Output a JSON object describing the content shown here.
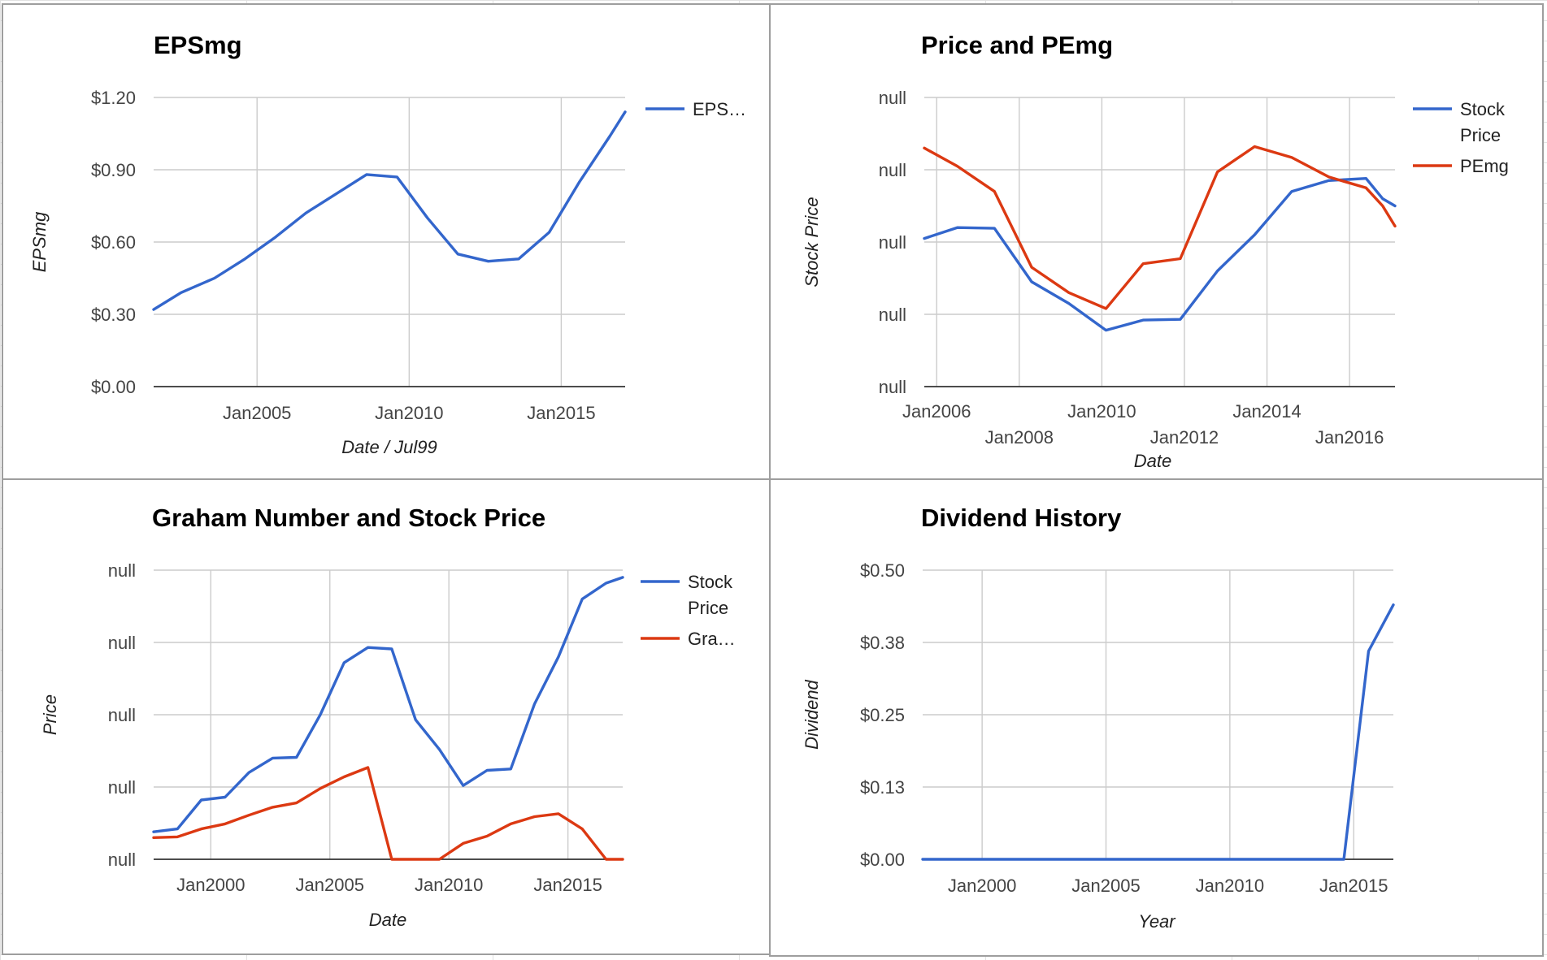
{
  "colors": {
    "blue": "#3366cc",
    "red": "#dc3912",
    "grid": "#cccccc"
  },
  "chart_data": [
    {
      "type": "line",
      "title": "EPSmg",
      "xlabel": "Date / Jul99",
      "ylabel": "EPSmg",
      "x_tick_labels": [
        "Jan2005",
        "Jan2010",
        "Jan2015"
      ],
      "y_tick_labels": [
        "$0.00",
        "$0.30",
        "$0.60",
        "$0.90",
        "$1.20"
      ],
      "xlim": [
        2001.6,
        2017.1
      ],
      "ylim": [
        0,
        1.2
      ],
      "legend_position": "right",
      "x": [
        2001.6,
        2002.5,
        2003.6,
        2004.6,
        2005.6,
        2006.6,
        2007.6,
        2008.6,
        2009.6,
        2010.6,
        2011.6,
        2012.6,
        2013.6,
        2014.6,
        2015.6,
        2016.6,
        2017.1
      ],
      "series": [
        {
          "name": "EPS…",
          "color": "#3366cc",
          "values": [
            0.32,
            0.39,
            0.45,
            0.53,
            0.62,
            0.72,
            0.8,
            0.88,
            0.87,
            0.7,
            0.55,
            0.52,
            0.53,
            0.64,
            0.85,
            1.04,
            1.14
          ]
        }
      ]
    },
    {
      "type": "line",
      "title": "Price and PEmg",
      "xlabel": "Date",
      "ylabel": "Stock Price",
      "x_tick_labels": [
        "Jan2006",
        "Jan2008",
        "Jan2010",
        "Jan2012",
        "Jan2014",
        "Jan2016"
      ],
      "y_tick_labels": [
        "null",
        "null",
        "null",
        "null",
        "null"
      ],
      "xlim": [
        2005.7,
        2017.1
      ],
      "ylim": [
        0,
        4
      ],
      "legend_position": "right",
      "x": [
        2005.7,
        2006.5,
        2007.4,
        2008.3,
        2009.2,
        2010.1,
        2011.0,
        2011.9,
        2012.8,
        2013.7,
        2014.6,
        2015.5,
        2016.4,
        2016.8,
        2017.1
      ],
      "series": [
        {
          "name": "Stock Price",
          "color": "#3366cc",
          "values": [
            2.05,
            2.2,
            2.19,
            1.45,
            1.15,
            0.78,
            0.92,
            0.93,
            1.6,
            2.1,
            2.7,
            2.85,
            2.88,
            2.6,
            2.5
          ]
        },
        {
          "name": "PEmg",
          "color": "#dc3912",
          "values": [
            3.3,
            3.05,
            2.7,
            1.65,
            1.3,
            1.08,
            1.7,
            1.77,
            2.97,
            3.32,
            3.17,
            2.9,
            2.75,
            2.5,
            2.22
          ]
        }
      ]
    },
    {
      "type": "line",
      "title": "Graham Number and Stock Price",
      "xlabel": "Date",
      "ylabel": "Price",
      "x_tick_labels": [
        "Jan2000",
        "Jan2005",
        "Jan2010",
        "Jan2015"
      ],
      "y_tick_labels": [
        "null",
        "null",
        "null",
        "null",
        "null"
      ],
      "xlim": [
        1997.6,
        2017.3
      ],
      "ylim": [
        0,
        4
      ],
      "legend_position": "right",
      "x": [
        1997.6,
        1998.6,
        1999.6,
        2000.6,
        2001.6,
        2002.6,
        2003.6,
        2004.6,
        2005.6,
        2006.6,
        2007.6,
        2008.6,
        2009.6,
        2010.6,
        2011.6,
        2012.6,
        2013.6,
        2014.6,
        2015.6,
        2016.6,
        2017.3
      ],
      "series": [
        {
          "name": "Stock Price",
          "color": "#3366cc",
          "values": [
            0.38,
            0.42,
            0.82,
            0.86,
            1.2,
            1.4,
            1.41,
            2.0,
            2.72,
            2.93,
            2.91,
            1.93,
            1.52,
            1.02,
            1.23,
            1.25,
            2.15,
            2.8,
            3.6,
            3.82,
            3.9
          ]
        },
        {
          "name": "Gra…",
          "color": "#dc3912",
          "values": [
            0.3,
            0.31,
            0.42,
            0.49,
            0.61,
            0.72,
            0.78,
            0.98,
            1.14,
            1.27,
            0.0,
            0.0,
            0.0,
            0.22,
            0.32,
            0.49,
            0.59,
            0.63,
            0.42,
            0.0,
            0.0
          ]
        }
      ]
    },
    {
      "type": "line",
      "title": "Dividend History",
      "xlabel": "Year",
      "ylabel": "Dividend",
      "x_tick_labels": [
        "Jan2000",
        "Jan2005",
        "Jan2010",
        "Jan2015"
      ],
      "y_tick_labels": [
        "$0.00",
        "$0.13",
        "$0.25",
        "$0.38",
        "$0.50"
      ],
      "xlim": [
        1997.6,
        2016.6
      ],
      "ylim": [
        0,
        0.5
      ],
      "legend_position": "none",
      "x": [
        1997.6,
        2014.6,
        2015.6,
        2016.6
      ],
      "series": [
        {
          "name": "",
          "color": "#3366cc",
          "values": [
            0.0,
            0.0,
            0.36,
            0.44
          ]
        }
      ]
    }
  ]
}
